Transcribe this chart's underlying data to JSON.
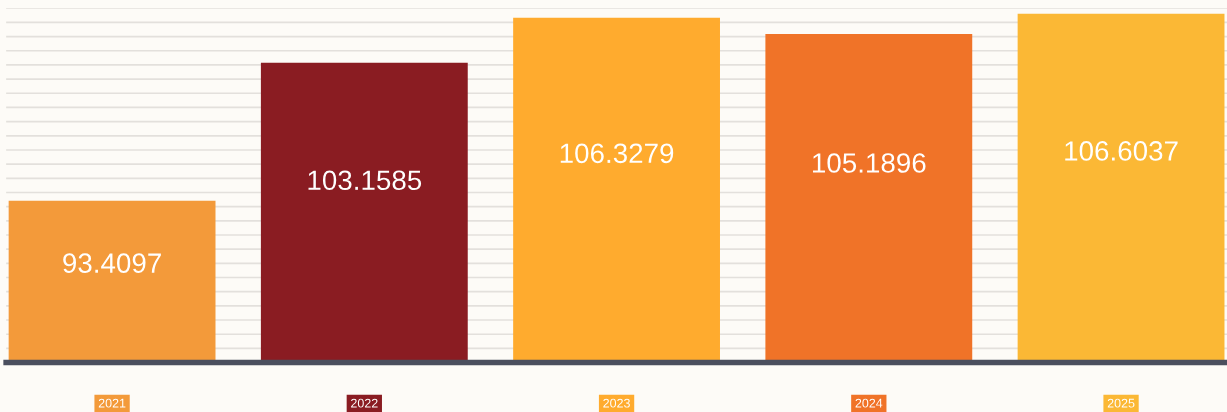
{
  "chart_data": {
    "type": "bar",
    "categories": [
      "2021",
      "2022",
      "2023",
      "2024",
      "2025"
    ],
    "values": [
      93.4097,
      103.1585,
      106.3279,
      105.1896,
      106.6037
    ],
    "colors": [
      "#f39a3a",
      "#8a1c22",
      "#ffab2e",
      "#f07328",
      "#fbb835"
    ],
    "data_labels": true,
    "ylim": [
      82,
      107
    ],
    "yticks": [
      {
        "value": 83,
        "label": null
      },
      {
        "value": 84,
        "label": null
      },
      {
        "value": 85,
        "label": null
      },
      {
        "value": 86,
        "label": null
      },
      {
        "value": 87,
        "label": null
      },
      {
        "value": 88,
        "label": null
      },
      {
        "value": 89,
        "label": null
      },
      {
        "value": 90,
        "label": null
      },
      {
        "value": 91,
        "label": null
      },
      {
        "value": 92,
        "label": null
      },
      {
        "value": 93,
        "label": null
      },
      {
        "value": 94,
        "label": null
      },
      {
        "value": 95,
        "label": null
      },
      {
        "value": 96,
        "label": null
      },
      {
        "value": 97,
        "label": null
      },
      {
        "value": 98,
        "label": null
      },
      {
        "value": 99,
        "label": null
      },
      {
        "value": 100,
        "label": null
      },
      {
        "value": 101,
        "label": null
      },
      {
        "value": 102,
        "label": null
      },
      {
        "value": 103,
        "label": null
      },
      {
        "value": 104,
        "label": null
      },
      {
        "value": 105,
        "label": null
      },
      {
        "value": 106,
        "label": null
      },
      {
        "value": 107,
        "label": null
      }
    ],
    "grid": "y",
    "tick_labels": "x"
  }
}
